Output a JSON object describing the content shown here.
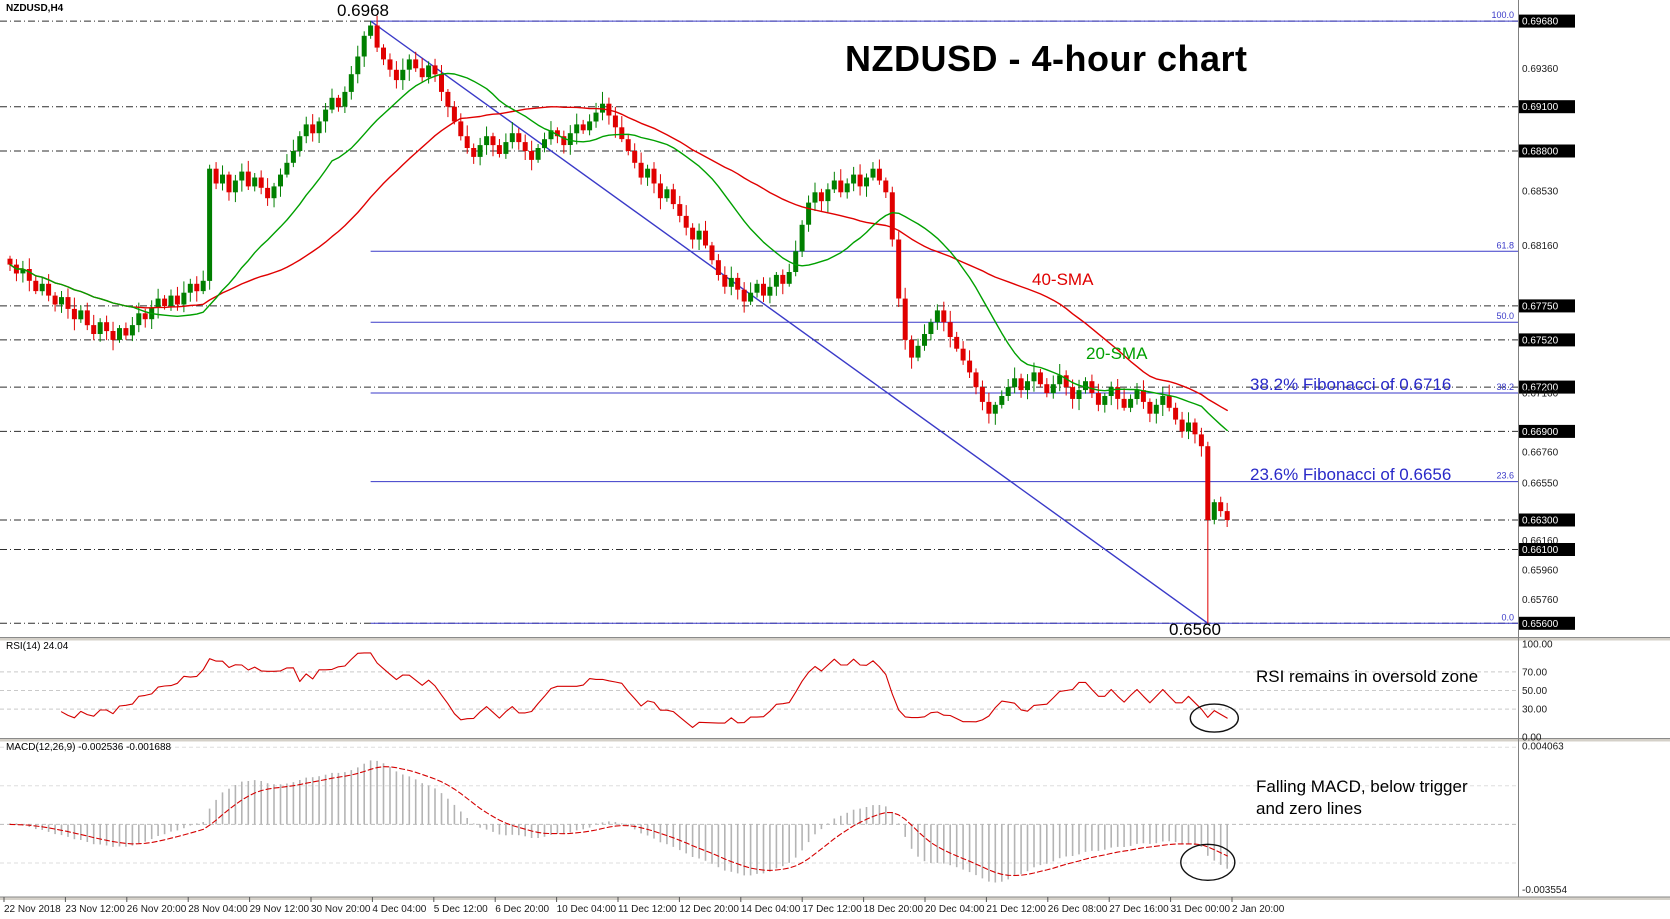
{
  "window": {
    "symbol": "NZDUSD,H4"
  },
  "title": "NZDUSD - 4-hour chart",
  "annotations": {
    "peak_price": "0.6968",
    "bottom_price": "0.6560",
    "sma40_label": "40-SMA",
    "sma20_label": "20-SMA",
    "fib382_note": "38.2% Fibonacci of 0.6716",
    "fib236_note": "23.6% Fibonacci of 0.6656",
    "rsi_note": "RSI remains in oversold zone",
    "macd_note_line1": "Falling MACD, below trigger",
    "macd_note_line2": "and zero lines"
  },
  "indicators": {
    "rsi_label": "RSI(14) 24.04",
    "macd_label": "MACD(12,26,9) -0.002536 -0.001688"
  },
  "colors": {
    "up": "#007F00",
    "down": "#E00000",
    "sma20": "#00A000",
    "sma40": "#E00000",
    "fib": "#3A3AC8",
    "trendline": "#3A3AC8",
    "sr": "#2E2E2E",
    "rsi": "#D40000",
    "signal": "#D40000",
    "macd_hist": "#B4B4B4",
    "grid": "#C9C9C9",
    "axis_text": "#1A1A1A",
    "box_bg": "#000000",
    "box_text": "#FFFFFF"
  },
  "axes": {
    "price": [
      {
        "t": "0.69680",
        "box": true
      },
      {
        "t": "0.69360",
        "box": false
      },
      {
        "t": "0.69100",
        "box": true
      },
      {
        "t": "0.68800",
        "box": true
      },
      {
        "t": "0.68530",
        "box": false
      },
      {
        "t": "0.68160",
        "box": false
      },
      {
        "t": "0.67750",
        "box": true
      },
      {
        "t": "0.67520",
        "box": true
      },
      {
        "t": "0.67200",
        "box": true
      },
      {
        "t": "0.67160",
        "box": false
      },
      {
        "t": "0.66900",
        "box": true
      },
      {
        "t": "0.66760",
        "box": false
      },
      {
        "t": "0.66550",
        "box": false
      },
      {
        "t": "0.66300",
        "box": true
      },
      {
        "t": "0.66160",
        "box": false
      },
      {
        "t": "0.66100",
        "box": true
      },
      {
        "t": "0.65960",
        "box": false
      },
      {
        "t": "0.65760",
        "box": false
      },
      {
        "t": "0.65600",
        "box": true
      }
    ],
    "rsi": [
      {
        "t": "100.00",
        "v": 100
      },
      {
        "t": "70.00",
        "v": 70
      },
      {
        "t": "50.00",
        "v": 50
      },
      {
        "t": "30.00",
        "v": 30
      },
      {
        "t": "0.00",
        "v": 0
      }
    ],
    "macd": [
      {
        "t": "0.004063",
        "v": 0.004063
      },
      {
        "t": "-0.003554",
        "v": -0.003554
      }
    ],
    "time": [
      "22 Nov 2018",
      "23 Nov 12:00",
      "26 Nov 20:00",
      "28 Nov 04:00",
      "29 Nov 12:00",
      "30 Nov 20:00",
      "4 Dec 04:00",
      "5 Dec 12:00",
      "6 Dec 20:00",
      "10 Dec 04:00",
      "11 Dec 12:00",
      "12 Dec 20:00",
      "14 Dec 04:00",
      "17 Dec 12:00",
      "18 Dec 20:00",
      "20 Dec 04:00",
      "21 Dec 12:00",
      "26 Dec 08:00",
      "27 Dec 16:00",
      "31 Dec 00:00",
      "2 Jan 20:00"
    ]
  },
  "chart_data": {
    "type": "candlestick",
    "symbol": "NZDUSD",
    "timeframe": "4-hour",
    "title": "NZDUSD - 4-hour chart",
    "price_range": {
      "min": 0.6549,
      "max": 0.6976
    },
    "closes": [
      0.6803,
      0.6797,
      0.68,
      0.6792,
      0.6785,
      0.679,
      0.6782,
      0.6776,
      0.6781,
      0.6773,
      0.6766,
      0.6772,
      0.6762,
      0.6756,
      0.6764,
      0.6758,
      0.6752,
      0.676,
      0.6755,
      0.6762,
      0.677,
      0.6766,
      0.6774,
      0.678,
      0.6775,
      0.6782,
      0.6776,
      0.6784,
      0.679,
      0.6785,
      0.6792,
      0.6868,
      0.6858,
      0.6864,
      0.6852,
      0.686,
      0.6866,
      0.6856,
      0.6862,
      0.6855,
      0.6848,
      0.6856,
      0.6864,
      0.6872,
      0.688,
      0.689,
      0.6898,
      0.6892,
      0.69,
      0.6908,
      0.6916,
      0.691,
      0.692,
      0.6932,
      0.6944,
      0.6958,
      0.6965,
      0.695,
      0.6942,
      0.6935,
      0.6928,
      0.6935,
      0.6942,
      0.6936,
      0.693,
      0.6938,
      0.6932,
      0.692,
      0.691,
      0.69,
      0.689,
      0.6882,
      0.6876,
      0.6884,
      0.689,
      0.6884,
      0.6878,
      0.6886,
      0.6892,
      0.6886,
      0.688,
      0.6874,
      0.6882,
      0.6888,
      0.6894,
      0.689,
      0.6884,
      0.6892,
      0.6898,
      0.6894,
      0.69,
      0.6906,
      0.6912,
      0.6904,
      0.6896,
      0.6888,
      0.688,
      0.6872,
      0.6862,
      0.6868,
      0.6858,
      0.6848,
      0.6854,
      0.6844,
      0.6836,
      0.6828,
      0.682,
      0.6826,
      0.6816,
      0.6806,
      0.6796,
      0.6788,
      0.6794,
      0.6786,
      0.6778,
      0.6784,
      0.679,
      0.6782,
      0.6788,
      0.6796,
      0.679,
      0.6798,
      0.6812,
      0.683,
      0.6845,
      0.6852,
      0.6846,
      0.6854,
      0.686,
      0.6852,
      0.6858,
      0.6864,
      0.6856,
      0.6862,
      0.6868,
      0.686,
      0.6852,
      0.682,
      0.678,
      0.6752,
      0.674,
      0.6748,
      0.6756,
      0.6764,
      0.6772,
      0.6764,
      0.6754,
      0.6746,
      0.6738,
      0.673,
      0.672,
      0.671,
      0.6702,
      0.6708,
      0.6714,
      0.672,
      0.6726,
      0.6718,
      0.6724,
      0.673,
      0.6722,
      0.6716,
      0.6722,
      0.6728,
      0.672,
      0.6712,
      0.6718,
      0.6724,
      0.6716,
      0.6708,
      0.6714,
      0.672,
      0.6712,
      0.6706,
      0.6712,
      0.6718,
      0.671,
      0.6702,
      0.6708,
      0.6714,
      0.6706,
      0.6698,
      0.669,
      0.6696,
      0.6688,
      0.668,
      0.663,
      0.6642,
      0.6636,
      0.663
    ],
    "overrides": {
      "31": {
        "low": 0.6786
      },
      "56": {
        "high": 0.6968
      },
      "92": {
        "high": 0.692
      },
      "186": {
        "high": 0.6683,
        "low": 0.656
      }
    },
    "current_close": 0.663,
    "overlays": [
      {
        "name": "20-SMA",
        "period": 20,
        "color": "#00A000"
      },
      {
        "name": "40-SMA",
        "period": 40,
        "color": "#E00000"
      }
    ],
    "fibonacci": {
      "anchor_low": 0.656,
      "anchor_high": 0.6968,
      "levels": [
        {
          "pct": "100.0",
          "price": 0.6968
        },
        {
          "pct": "61.8",
          "price": 0.6812
        },
        {
          "pct": "50.0",
          "price": 0.6764
        },
        {
          "pct": "38.2",
          "price": 0.6716
        },
        {
          "pct": "23.6",
          "price": 0.6656
        },
        {
          "pct": "0.0",
          "price": 0.656
        }
      ]
    },
    "sr_levels": [
      0.6968,
      0.691,
      0.688,
      0.6775,
      0.6752,
      0.672,
      0.669,
      0.663,
      0.661,
      0.656
    ],
    "trendline": {
      "from_bar": 56,
      "from_price": 0.6968,
      "to_bar": 186,
      "to_price": 0.656
    },
    "rsi": {
      "period": 14,
      "current": 24.04,
      "levels": [
        70,
        50,
        30
      ]
    },
    "macd": {
      "fast": 12,
      "slow": 26,
      "signal_period": 9,
      "current_macd": -0.002536,
      "current_signal": -0.001688
    }
  }
}
